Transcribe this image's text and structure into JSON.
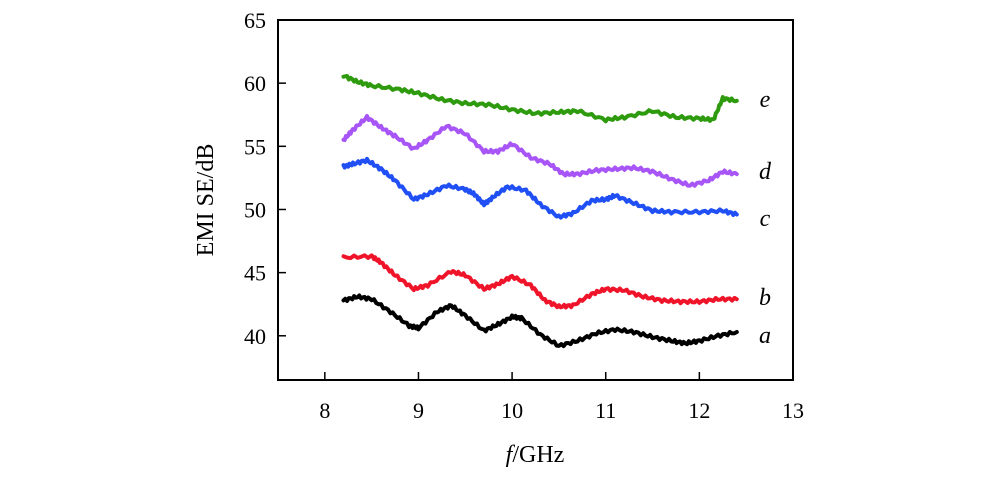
{
  "chart_data": {
    "type": "line",
    "title": "",
    "xlabel_italic": "f",
    "xlabel_rest": "/GHz",
    "ylabel": "EMI SE/dB",
    "xlim": [
      7.5,
      13
    ],
    "ylim": [
      36.5,
      65
    ],
    "xticks": [
      8,
      9,
      10,
      11,
      12,
      13
    ],
    "yticks": [
      40,
      45,
      50,
      55,
      60,
      65
    ],
    "grid": false,
    "legend": "inline labels at right end of each curve",
    "series": [
      {
        "name": "a",
        "color": "#000000",
        "x": [
          8.2,
          8.35,
          8.5,
          8.7,
          8.9,
          9.0,
          9.2,
          9.35,
          9.5,
          9.7,
          9.85,
          10.0,
          10.1,
          10.3,
          10.5,
          10.7,
          10.9,
          11.1,
          11.3,
          11.5,
          11.7,
          11.85,
          12.0,
          12.2,
          12.4
        ],
        "y": [
          42.8,
          43.1,
          42.9,
          41.9,
          40.8,
          40.6,
          41.9,
          42.4,
          41.6,
          40.4,
          40.9,
          41.5,
          41.4,
          40.1,
          39.2,
          39.6,
          40.2,
          40.5,
          40.3,
          39.9,
          39.6,
          39.4,
          39.6,
          40.0,
          40.3
        ]
      },
      {
        "name": "b",
        "color": "#f0142a",
        "x": [
          8.2,
          8.5,
          8.6,
          8.75,
          8.95,
          9.1,
          9.35,
          9.5,
          9.7,
          9.85,
          10.0,
          10.2,
          10.35,
          10.5,
          10.65,
          10.85,
          11.0,
          11.2,
          11.4,
          11.6,
          11.8,
          12.0,
          12.2,
          12.4
        ],
        "y": [
          46.2,
          46.3,
          45.8,
          44.8,
          43.7,
          44.0,
          45.1,
          44.8,
          43.7,
          44.1,
          44.7,
          44.0,
          42.8,
          42.3,
          42.4,
          43.3,
          43.7,
          43.6,
          43.1,
          42.8,
          42.7,
          42.7,
          42.9,
          42.9
        ]
      },
      {
        "name": "c",
        "color": "#1f4ff5",
        "x": [
          8.2,
          8.3,
          8.45,
          8.6,
          8.75,
          8.95,
          9.1,
          9.3,
          9.5,
          9.6,
          9.7,
          9.8,
          9.95,
          10.15,
          10.3,
          10.5,
          10.65,
          10.85,
          11.0,
          11.1,
          11.3,
          11.5,
          11.7,
          12.0,
          12.25,
          12.4
        ],
        "y": [
          53.4,
          53.6,
          53.9,
          53.2,
          52.3,
          50.8,
          51.2,
          51.9,
          51.6,
          51.2,
          50.4,
          51.0,
          51.8,
          51.5,
          50.4,
          49.4,
          49.7,
          50.7,
          50.8,
          51.1,
          50.5,
          49.9,
          49.8,
          49.8,
          49.9,
          49.6
        ]
      },
      {
        "name": "d",
        "color": "#a855f7",
        "x": [
          8.2,
          8.3,
          8.45,
          8.6,
          8.75,
          8.95,
          9.1,
          9.3,
          9.5,
          9.7,
          9.85,
          10.0,
          10.2,
          10.4,
          10.55,
          10.7,
          10.9,
          11.1,
          11.3,
          11.5,
          11.7,
          11.9,
          12.1,
          12.25,
          12.4
        ],
        "y": [
          55.5,
          56.3,
          57.3,
          56.5,
          55.8,
          54.8,
          55.5,
          56.6,
          56.0,
          54.6,
          54.6,
          55.2,
          54.1,
          53.6,
          52.8,
          52.8,
          53.1,
          53.2,
          53.3,
          53.0,
          52.4,
          51.9,
          52.3,
          53.0,
          52.8
        ]
      },
      {
        "name": "e",
        "color": "#2e9a0e",
        "x": [
          8.2,
          8.35,
          8.5,
          8.8,
          9.0,
          9.25,
          9.5,
          9.75,
          10.0,
          10.25,
          10.5,
          10.7,
          11.0,
          11.2,
          11.5,
          11.75,
          12.0,
          12.15,
          12.25,
          12.4
        ],
        "y": [
          60.6,
          60.1,
          59.8,
          59.5,
          59.2,
          58.7,
          58.4,
          58.3,
          57.9,
          57.6,
          57.7,
          57.8,
          57.1,
          57.3,
          57.8,
          57.3,
          57.2,
          57.1,
          58.8,
          58.6
        ]
      }
    ]
  }
}
